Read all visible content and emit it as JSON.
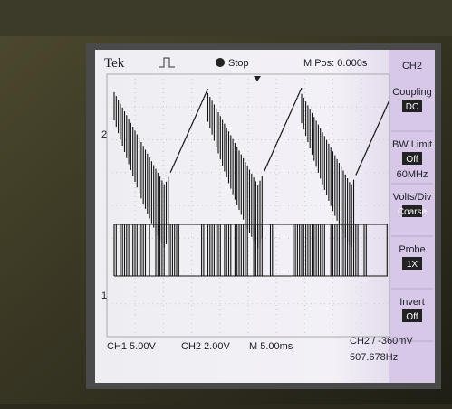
{
  "header": {
    "brand": "Tek",
    "status": "Stop",
    "position": "M Pos: 0.000s"
  },
  "menu": {
    "title": "CH2",
    "items": [
      {
        "label": "Coupling",
        "value": "DC"
      },
      {
        "label": "BW Limit",
        "value": "Off",
        "note": "60MHz"
      },
      {
        "label": "Volts/Div",
        "value": "Coarse"
      },
      {
        "label": "Probe",
        "value": "1X"
      },
      {
        "label": "Invert",
        "value": "Off"
      }
    ]
  },
  "markers": {
    "ch2": "2",
    "ch1": "1"
  },
  "footer": {
    "ch1": "CH1 5.00V",
    "ch2": "CH2 2.00V",
    "time": "M 5.00ms",
    "trigger": "CH2 / -360mV",
    "frequency": "507.678Hz"
  }
}
